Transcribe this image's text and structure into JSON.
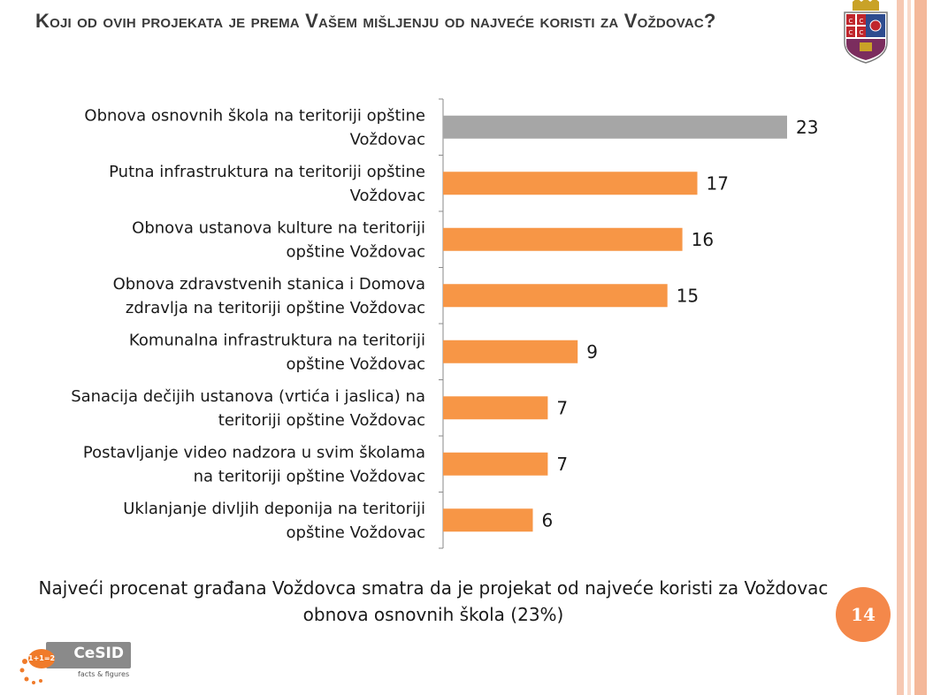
{
  "slide": {
    "title": "Koji od ovih projekata je prema Vašem mišljenju od najveće koristi za Voždovac?",
    "summary": "Najveći procenat građana Voždovca smatra da je projekat od najveće koristi za Voždovac obnova osnovnih škola (23%)",
    "page_number": "14",
    "logo_text": "CeSID",
    "logo_bubble": "1+1=2",
    "logo_tagline": "facts & figures",
    "crest_letters": [
      "С",
      "С",
      "С",
      "С"
    ],
    "accent_color": "#f4884a",
    "stripe_color": "#f6c8b2"
  },
  "chart_data": {
    "type": "bar",
    "orientation": "horizontal",
    "categories": [
      [
        "Obnova osnovnih škola na teritoriji opštine",
        "Voždovac"
      ],
      [
        "Putna infrastruktura na teritoriji opštine",
        "Voždovac"
      ],
      [
        "Obnova ustanova kulture na teritoriji",
        "opštine Voždovac"
      ],
      [
        "Obnova zdravstvenih stanica i Domova",
        "zdravlja na teritoriji opštine Voždovac"
      ],
      [
        "Komunalna infrastruktura na teritoriji",
        "opštine Voždovac"
      ],
      [
        "Sanacija dečijih ustanova (vrtića i jaslica) na",
        "teritoriji opštine Voždovac"
      ],
      [
        "Postavljanje video nadzora u svim školama",
        "na teritoriji opštine Voždovac"
      ],
      [
        "Uklanjanje divljih deponija na teritoriji",
        "opštine Voždovac"
      ]
    ],
    "values": [
      23,
      17,
      16,
      15,
      9,
      7,
      7,
      6
    ],
    "bar_colors": [
      "#a6a6a6",
      "#f79646",
      "#f79646",
      "#f79646",
      "#f79646",
      "#f79646",
      "#f79646",
      "#f79646"
    ],
    "xlim": [
      0,
      23
    ],
    "grid": false,
    "legend": "none",
    "data_labels": true
  }
}
